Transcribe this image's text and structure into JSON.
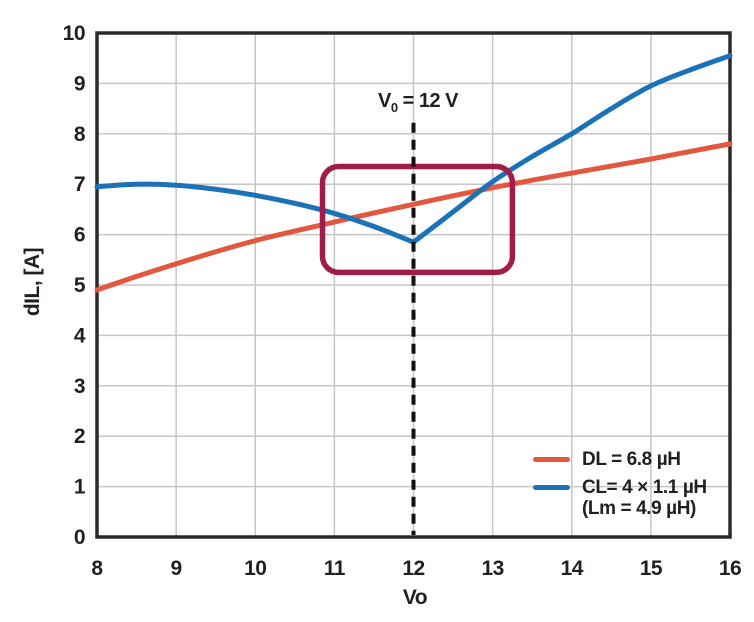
{
  "figure": {
    "background": "#ffffff",
    "text_color": "#231f20",
    "grid_color": "#c6c6c6",
    "frame_color": "#2b2a29"
  },
  "chart_data": {
    "type": "line",
    "title": "",
    "xlabel": "Vo",
    "ylabel": "dIL, [A]",
    "xlim": [
      8,
      16
    ],
    "ylim": [
      0,
      10
    ],
    "x_ticks": [
      8,
      9,
      10,
      11,
      12,
      13,
      14,
      15,
      16
    ],
    "y_ticks": [
      0,
      1,
      2,
      3,
      4,
      5,
      6,
      7,
      8,
      9,
      10
    ],
    "grid": true,
    "legend_position": "bottom-right",
    "x": [
      8,
      8.5,
      9,
      9.5,
      10,
      10.5,
      11,
      11.5,
      12,
      12.5,
      13,
      13.5,
      14,
      14.5,
      15,
      15.5,
      16
    ],
    "series": [
      {
        "name": "DL = 6.8 µH",
        "color": "#e2573d",
        "values": [
          4.9,
          5.17,
          5.42,
          5.66,
          5.88,
          6.07,
          6.25,
          6.43,
          6.6,
          6.77,
          6.93,
          7.08,
          7.22,
          7.36,
          7.5,
          7.65,
          7.8
        ]
      },
      {
        "name": "CL= 4 × 1.1 µH (Lm = 4.9 µH)",
        "color": "#1c72b8",
        "sharp_x": [
          12
        ],
        "values": [
          6.95,
          7.0,
          6.98,
          6.9,
          6.78,
          6.62,
          6.42,
          6.16,
          5.85,
          6.45,
          7.05,
          7.55,
          8.0,
          8.5,
          8.95,
          9.27,
          9.55
        ]
      }
    ],
    "annotations": {
      "vline": {
        "x": 12,
        "y_top": 8.22,
        "style": "dashed",
        "color": "#111111",
        "label": {
          "base": "V",
          "sub": "0",
          "rest": " = 12 V"
        }
      },
      "highlight_box": {
        "x1": 10.85,
        "x2": 13.25,
        "y1": 5.25,
        "y2": 7.35,
        "color": "#a21c4b"
      }
    }
  },
  "legend": {
    "items": [
      {
        "swatch_color": "#e2573d",
        "lines": [
          "DL = 6.8 µH"
        ]
      },
      {
        "swatch_color": "#1c72b8",
        "lines": [
          "CL= 4 × 1.1 µH",
          "(Lm = 4.9 µH)"
        ]
      }
    ]
  }
}
